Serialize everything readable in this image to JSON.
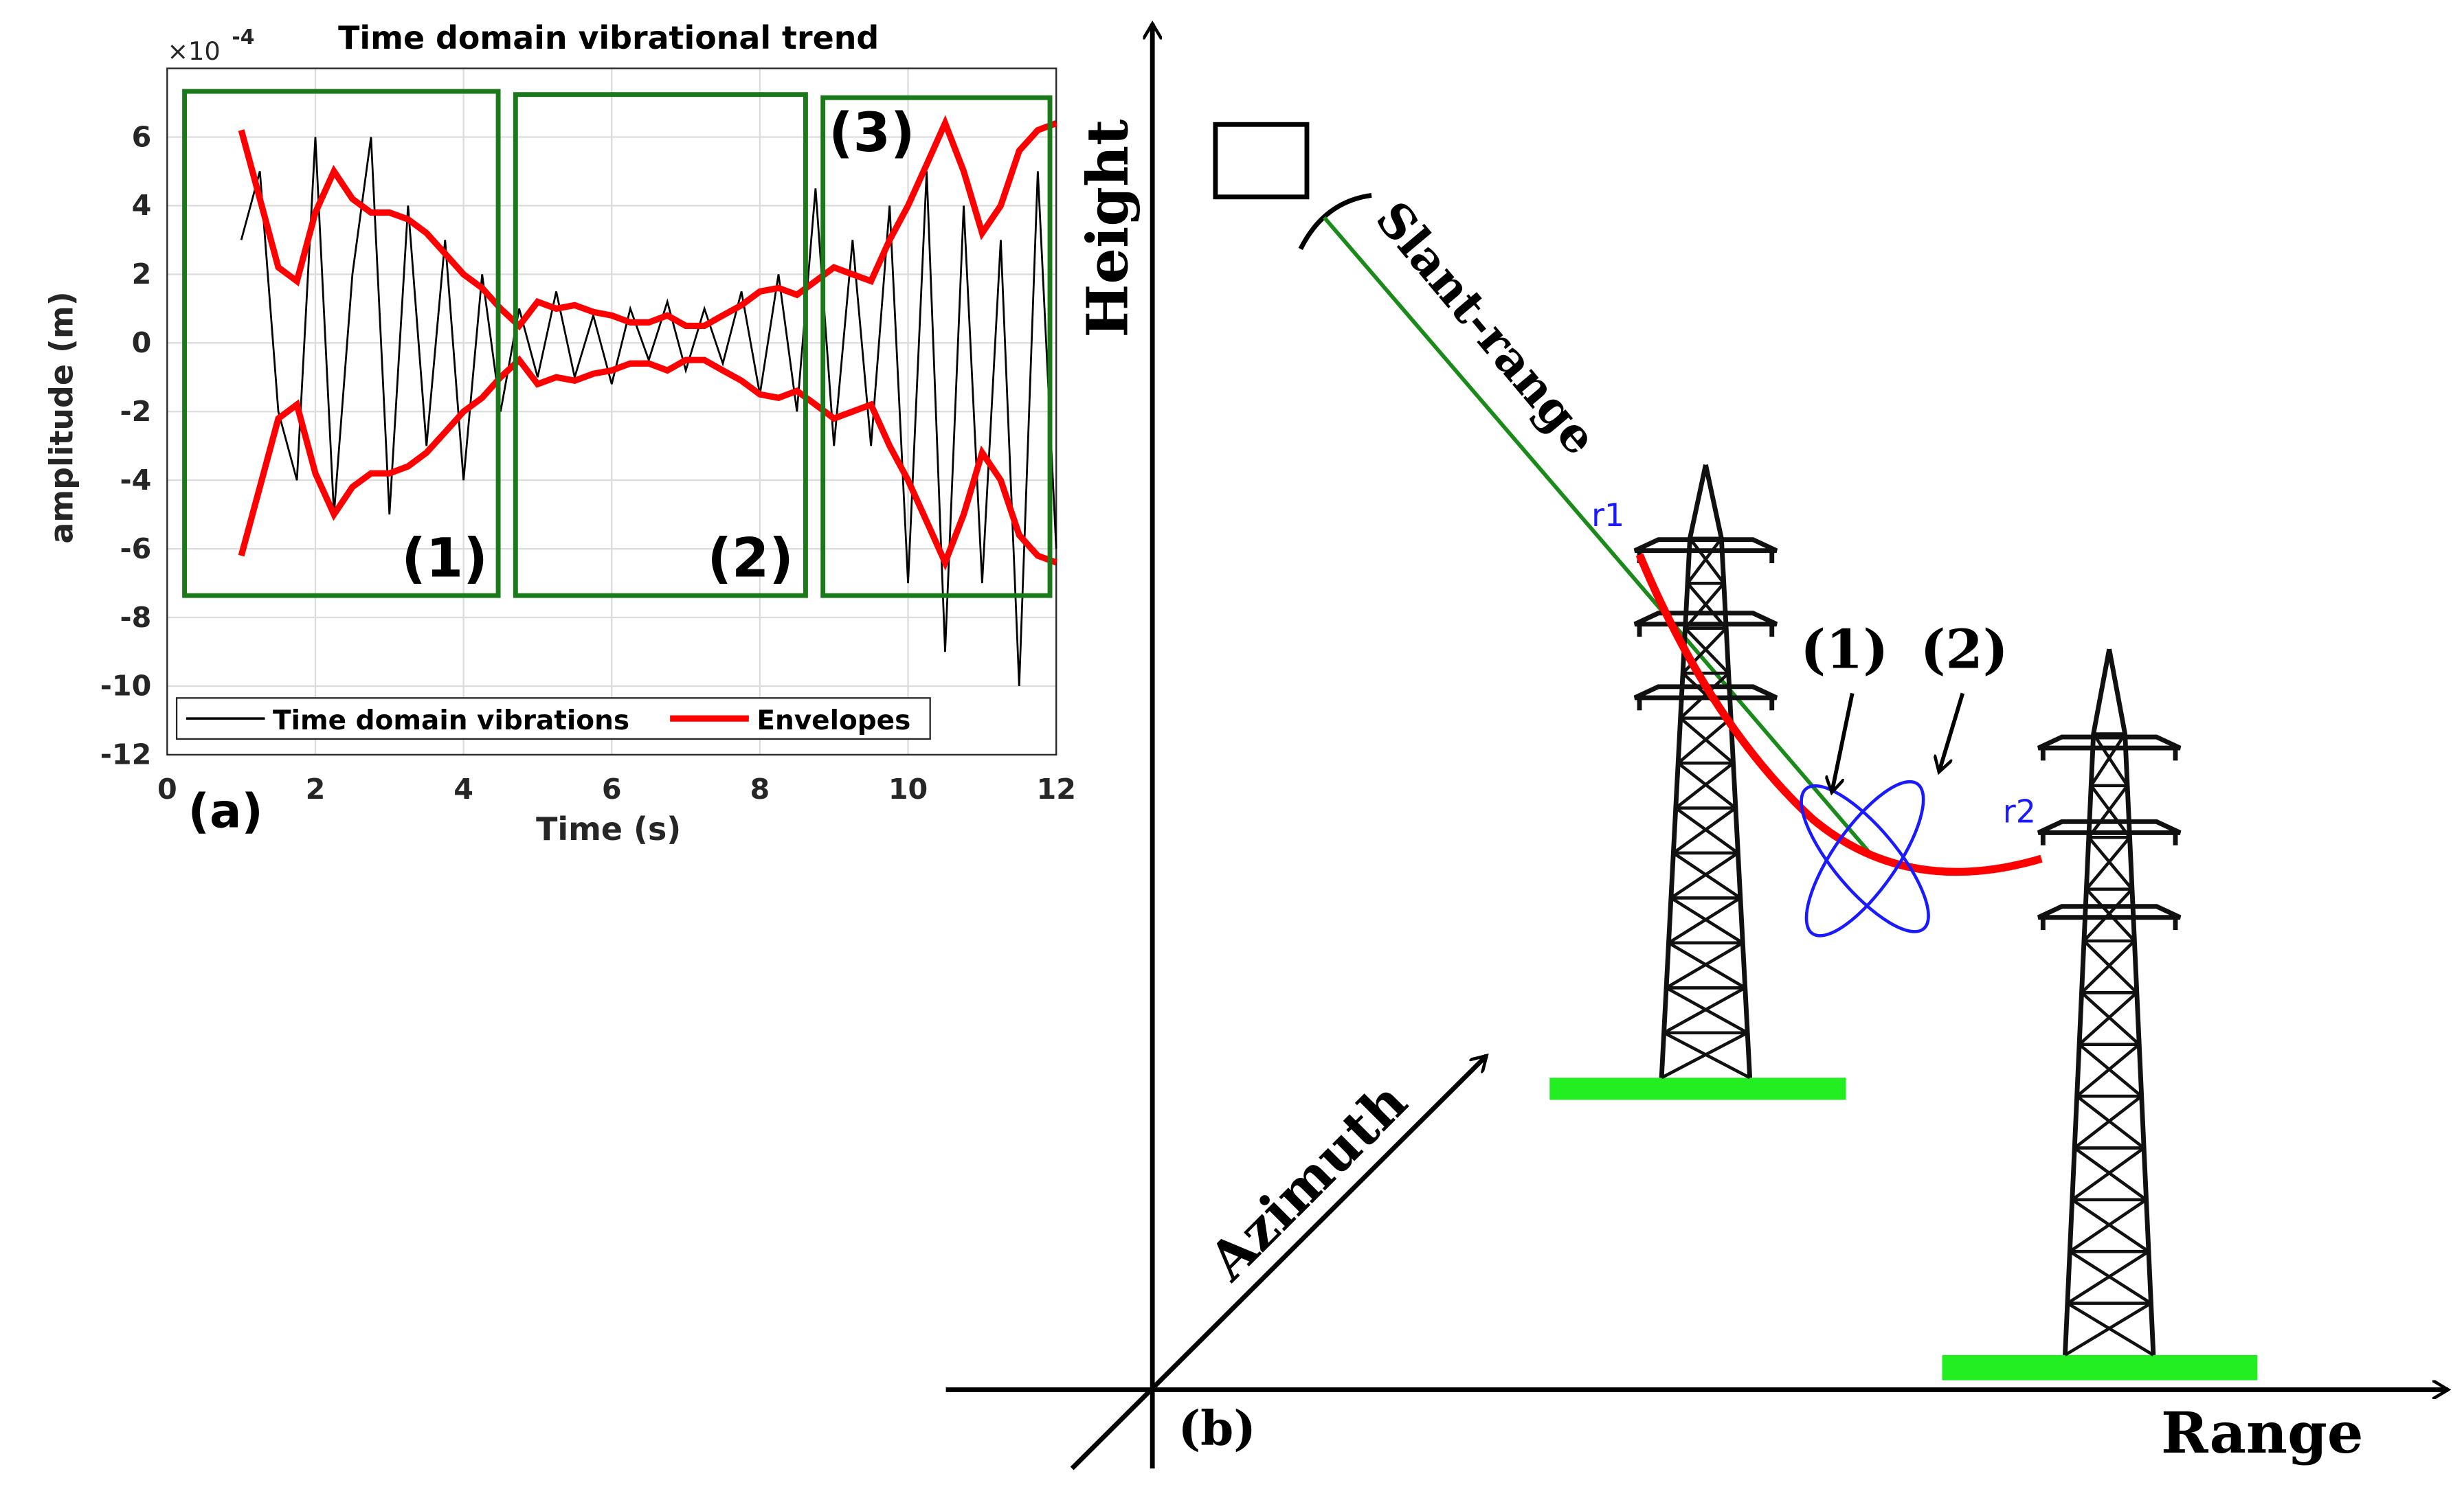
{
  "chart_data": {
    "type": "line",
    "title": "Time domain vibrational trend",
    "y_multiplier": {
      "base": "×10",
      "exponent": "-4"
    },
    "x_label": "Time (s)",
    "y_label": "amplitude (m)",
    "panel_label": "(a)",
    "region_labels": [
      "(1)",
      "(2)",
      "(3)"
    ],
    "xlim": [
      0,
      12
    ],
    "ylim": [
      -12,
      8
    ],
    "xticks": [
      0,
      2,
      4,
      6,
      8,
      10,
      12
    ],
    "yticks": [
      -12,
      -10,
      -8,
      -6,
      -4,
      -2,
      0,
      2,
      4,
      6
    ],
    "grid": true,
    "x": [
      1,
      1.25,
      1.5,
      1.75,
      2,
      2.25,
      2.5,
      2.75,
      3,
      3.25,
      3.5,
      3.75,
      4,
      4.25,
      4.5,
      4.75,
      5,
      5.25,
      5.5,
      5.75,
      6,
      6.25,
      6.5,
      6.75,
      7,
      7.25,
      7.5,
      7.75,
      8,
      8.25,
      8.5,
      8.75,
      9,
      9.25,
      9.5,
      9.75,
      10,
      10.25,
      10.5,
      10.75,
      11,
      11.25,
      11.5,
      11.75,
      12
    ],
    "series": [
      {
        "name": "Time domain vibrations",
        "color": "#000000",
        "values": [
          3,
          5,
          -2,
          -4,
          6,
          -5,
          2,
          6,
          -5,
          4,
          -3,
          3,
          -4,
          2,
          -2,
          1,
          -1,
          1.5,
          -1,
          0.8,
          -1.2,
          1,
          -0.5,
          1.2,
          -0.8,
          1,
          -0.6,
          1.5,
          -1.5,
          2,
          -2,
          4.5,
          -3,
          3,
          -3,
          4,
          -7,
          5,
          -9,
          4,
          -7,
          3,
          -10,
          5,
          -6
        ]
      },
      {
        "name": "Envelopes",
        "color": "#ff0000",
        "values": [
          6.2,
          4.2,
          2.2,
          1.8,
          3.8,
          5.0,
          4.2,
          3.8,
          3.8,
          3.6,
          3.2,
          2.6,
          2.0,
          1.6,
          1.0,
          0.5,
          1.2,
          1.0,
          1.1,
          0.9,
          0.8,
          0.6,
          0.6,
          0.8,
          0.5,
          0.5,
          0.8,
          1.1,
          1.5,
          1.6,
          1.4,
          1.8,
          2.2,
          2.0,
          1.8,
          3.0,
          4.0,
          5.2,
          6.4,
          5.0,
          3.2,
          4.0,
          5.6,
          6.2,
          6.4
        ],
        "lower": [
          -6.2,
          -4.2,
          -2.2,
          -1.8,
          -3.8,
          -5.0,
          -4.2,
          -3.8,
          -3.8,
          -3.6,
          -3.2,
          -2.6,
          -2.0,
          -1.6,
          -1.0,
          -0.5,
          -1.2,
          -1.0,
          -1.1,
          -0.9,
          -0.8,
          -0.6,
          -0.6,
          -0.8,
          -0.5,
          -0.5,
          -0.8,
          -1.1,
          -1.5,
          -1.6,
          -1.4,
          -1.8,
          -2.2,
          -2.0,
          -1.8,
          -3.0,
          -4.0,
          -5.2,
          -6.4,
          -5.0,
          -3.2,
          -4.0,
          -5.6,
          -6.2,
          -6.4
        ]
      }
    ]
  },
  "diagram": {
    "height_label": "Height",
    "range_label": "Range",
    "azimuth_label": "Azimuth",
    "slant_label": "Slant-range",
    "r1": "r1",
    "r2": "r2",
    "mode1": "(1)",
    "mode2": "(2)",
    "panel_label": "(b)"
  }
}
